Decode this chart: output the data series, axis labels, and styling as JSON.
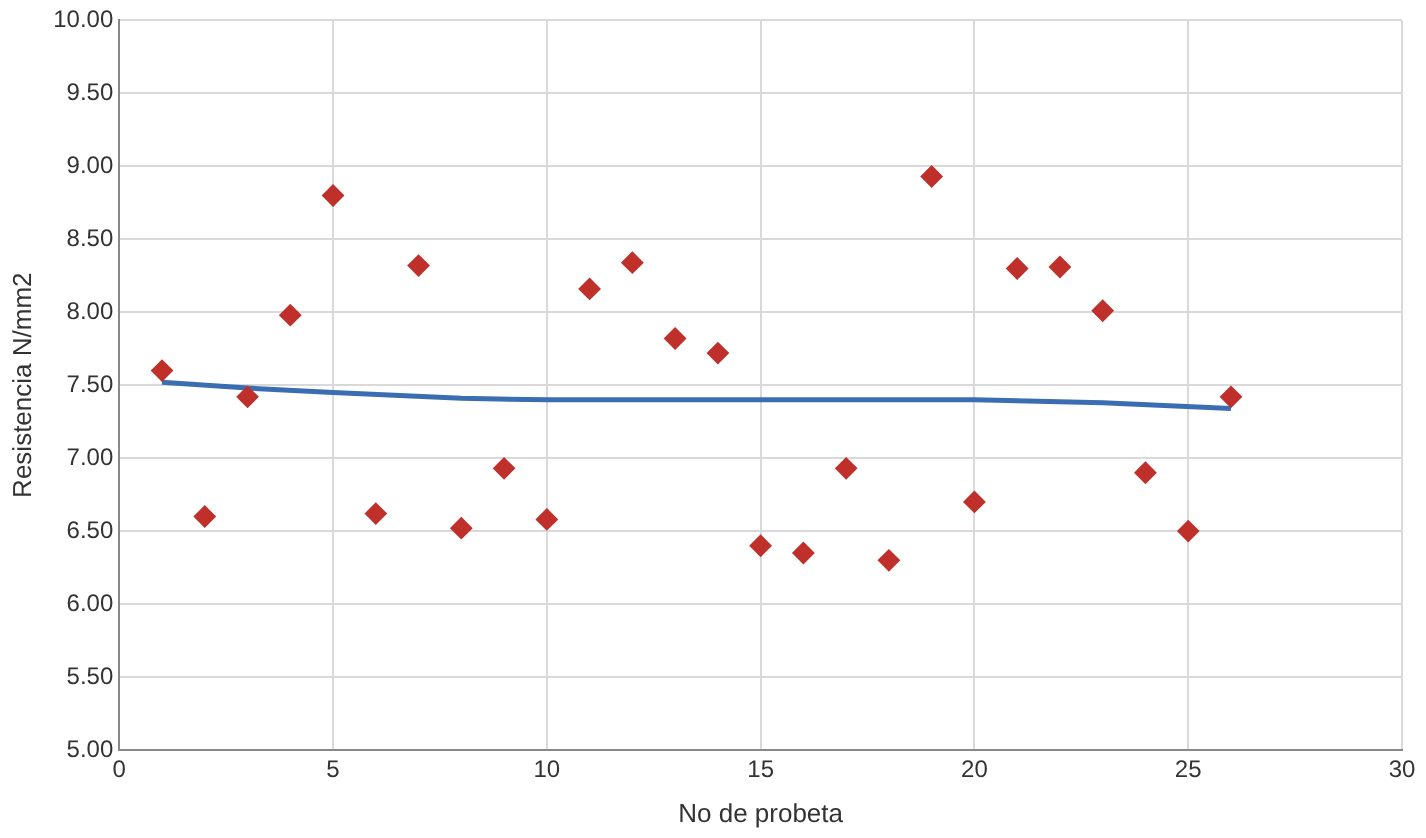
{
  "chart_data": {
    "type": "scatter",
    "xlabel": "No de probeta",
    "ylabel": "Resistencia N/mm2",
    "x": [
      1,
      2,
      3,
      4,
      5,
      6,
      7,
      8,
      9,
      10,
      11,
      12,
      13,
      14,
      15,
      16,
      17,
      18,
      19,
      20,
      21,
      22,
      23,
      24,
      25,
      26
    ],
    "series": [
      {
        "color": "#c0302b",
        "marker": "diamond",
        "values": [
          7.6,
          6.6,
          7.42,
          7.98,
          8.8,
          6.62,
          8.32,
          6.52,
          6.93,
          6.58,
          8.16,
          8.34,
          7.82,
          7.72,
          6.4,
          6.35,
          6.93,
          6.3,
          8.93,
          6.7,
          8.3,
          8.31,
          8.01,
          6.9,
          6.5,
          7.42
        ]
      },
      {
        "type": "line",
        "color": "#3a6eb0",
        "marker": "none",
        "line_style": "solid",
        "x": [
          1,
          3,
          5,
          8,
          10,
          15,
          20,
          23,
          26
        ],
        "values": [
          7.52,
          7.48,
          7.45,
          7.41,
          7.4,
          7.4,
          7.4,
          7.38,
          7.34
        ]
      }
    ],
    "xlim": [
      0,
      30
    ],
    "xticks": [
      0,
      5,
      10,
      15,
      20,
      25,
      30
    ],
    "ylim": [
      5,
      10
    ],
    "yticks": [
      {
        "value": 5,
        "label": "5.00"
      },
      {
        "value": 5.5,
        "label": "5.50"
      },
      {
        "value": 6,
        "label": "6.00"
      },
      {
        "value": 6.5,
        "label": "6.50"
      },
      {
        "value": 7,
        "label": "7.00"
      },
      {
        "value": 7.5,
        "label": "7.50"
      },
      {
        "value": 8,
        "label": "8.00"
      },
      {
        "value": 8.5,
        "label": "8.50"
      },
      {
        "value": 9,
        "label": "9.00"
      },
      {
        "value": 9.5,
        "label": "9.50"
      },
      {
        "value": 10,
        "label": "10.00"
      }
    ],
    "grid": true,
    "legend": false
  }
}
